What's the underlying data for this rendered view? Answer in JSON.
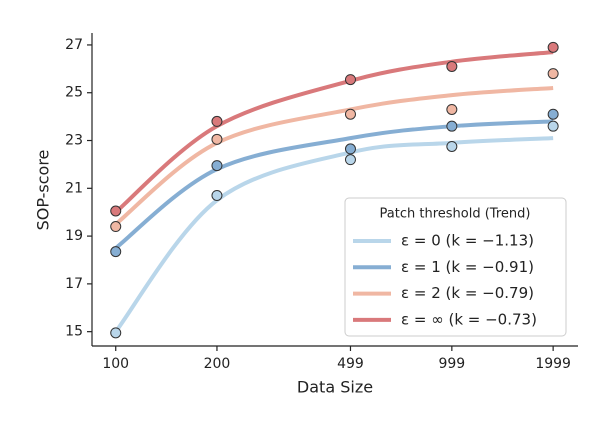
{
  "chart_data": {
    "type": "scatter",
    "x_label": "Data Size",
    "y_label": "SOP-score",
    "x": [
      100,
      200,
      499,
      999,
      1999
    ],
    "xscale": "log",
    "xlim": [
      85,
      2370
    ],
    "xticks": [
      100,
      200,
      499,
      999,
      1999
    ],
    "ylim": [
      14.4,
      27.5
    ],
    "yticks": [
      15,
      17,
      19,
      21,
      23,
      25,
      27
    ],
    "legend_title": "Patch threshold (Trend)",
    "legend_position": "lower right",
    "series": [
      {
        "name": "ε = 0 (k = −1.13)",
        "color": "#b9d6ea",
        "values": [
          14.95,
          20.7,
          22.2,
          22.75,
          23.6
        ],
        "trend": [
          15.0,
          20.5,
          22.5,
          22.9,
          23.1
        ]
      },
      {
        "name": "ε = 1 (k = −0.91)",
        "color": "#86aed3",
        "values": [
          18.35,
          21.95,
          22.65,
          23.6,
          24.1
        ],
        "trend": [
          18.5,
          21.8,
          23.1,
          23.6,
          23.8
        ]
      },
      {
        "name": "ε = 2 (k = −0.79)",
        "color": "#f0b7a3",
        "values": [
          19.4,
          23.05,
          24.1,
          24.3,
          25.8
        ],
        "trend": [
          19.5,
          22.9,
          24.3,
          24.9,
          25.2
        ]
      },
      {
        "name": "ε = ∞ (k = −0.73)",
        "color": "#d9797b",
        "values": [
          20.05,
          23.8,
          25.55,
          26.1,
          26.9
        ],
        "trend": [
          20.0,
          23.6,
          25.5,
          26.3,
          26.7
        ]
      }
    ]
  }
}
